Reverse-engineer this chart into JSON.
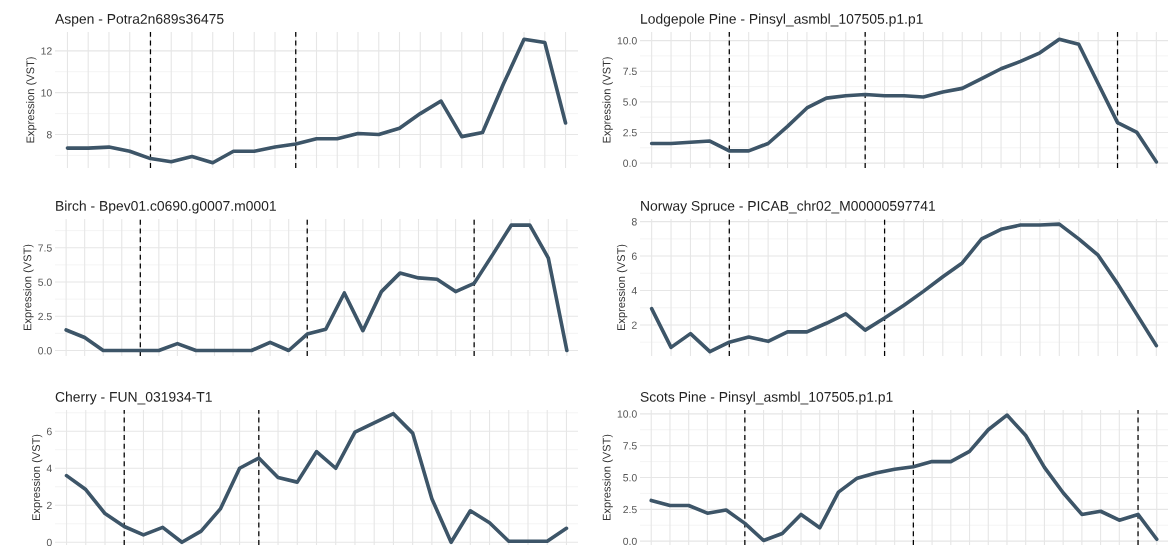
{
  "chart_data": [
    {
      "type": "line",
      "title": "Aspen - Potra2n689s36475",
      "ylabel": "Expression (VST)",
      "categories": [
        null,
        null,
        null,
        null,
        null,
        null,
        null,
        null,
        null,
        null,
        null,
        null,
        null,
        null,
        null,
        null,
        null,
        null,
        null,
        null,
        null,
        null,
        null,
        null,
        null
      ],
      "series": [
        {
          "color": "#3d5568",
          "values": [
            7.35,
            7.35,
            7.4,
            7.2,
            6.85,
            6.7,
            6.95,
            6.65,
            7.2,
            7.2,
            7.4,
            7.55,
            7.8,
            7.8,
            8.05,
            8.0,
            8.3,
            9.0,
            9.6,
            7.9,
            8.1,
            10.4,
            12.55,
            12.4,
            8.55
          ]
        }
      ],
      "ylim": [
        6.4,
        12.9
      ],
      "yticks": [
        8,
        10,
        12
      ],
      "grid": true,
      "line_style": "solid",
      "marker": "none"
    },
    {
      "type": "line",
      "title": "Lodgepole Pine - Pinsyl_asmbl_107505.p1.p1",
      "ylabel": "Expression (VST)",
      "categories": [
        null,
        null,
        null,
        null,
        null,
        null,
        null,
        null,
        null,
        null,
        null,
        null,
        null,
        null,
        null,
        null,
        null,
        null,
        null,
        null,
        null,
        null,
        null,
        null,
        null,
        null,
        null
      ],
      "series": [
        {
          "color": "#3d5568",
          "values": [
            1.6,
            1.6,
            1.7,
            1.8,
            1.0,
            1.0,
            1.6,
            3.0,
            4.5,
            5.3,
            5.5,
            5.6,
            5.5,
            5.5,
            5.4,
            5.8,
            6.1,
            6.9,
            7.7,
            8.3,
            9.0,
            10.1,
            9.7,
            6.5,
            3.3,
            2.5,
            0.1
          ]
        }
      ],
      "ylim": [
        -0.4,
        10.7
      ],
      "yticks": [
        {
          "value": 0,
          "label": "0.0"
        },
        {
          "value": 2.5,
          "label": "2.5"
        },
        {
          "value": 5,
          "label": "5.0"
        },
        {
          "value": 7.5,
          "label": "7.5"
        },
        {
          "value": 10,
          "label": "10.0"
        }
      ],
      "grid": true,
      "line_style": "solid",
      "marker": "none"
    },
    {
      "type": "line",
      "title": "Birch - Bpev01.c0690.g0007.m0001",
      "ylabel": "Expression (VST)",
      "categories": [
        null,
        null,
        null,
        null,
        null,
        null,
        null,
        null,
        null,
        null,
        null,
        null,
        null,
        null,
        null,
        null,
        null,
        null,
        null,
        null,
        null,
        null,
        null,
        null,
        null,
        null,
        null,
        null
      ],
      "series": [
        {
          "color": "#3d5568",
          "values": [
            1.5,
            0.95,
            0,
            0,
            0,
            0,
            0.5,
            0,
            0,
            0,
            0,
            0.6,
            0,
            1.2,
            1.55,
            4.2,
            1.45,
            4.3,
            5.65,
            5.3,
            5.2,
            4.3,
            4.9,
            7.0,
            9.15,
            9.15,
            6.75,
            0
          ]
        }
      ],
      "ylim": [
        -0.4,
        9.6
      ],
      "yticks": [
        {
          "value": 0,
          "label": "0.0"
        },
        {
          "value": 2.5,
          "label": "2.5"
        },
        {
          "value": 5,
          "label": "5.0"
        },
        {
          "value": 7.5,
          "label": "7.5"
        }
      ],
      "grid": true,
      "line_style": "solid",
      "marker": "none"
    },
    {
      "type": "line",
      "title": "Norway Spruce - PICAB_chr02_M00000597741",
      "ylabel": "Expression (VST)",
      "categories": [
        null,
        null,
        null,
        null,
        null,
        null,
        null,
        null,
        null,
        null,
        null,
        null,
        null,
        null,
        null,
        null,
        null,
        null,
        null,
        null,
        null,
        null,
        null,
        null,
        null,
        null,
        null
      ],
      "series": [
        {
          "color": "#3d5568",
          "values": [
            2.95,
            0.7,
            1.5,
            0.45,
            1.0,
            1.3,
            1.05,
            1.6,
            1.6,
            2.1,
            2.65,
            1.7,
            2.4,
            3.15,
            3.95,
            4.8,
            5.6,
            7.0,
            7.55,
            7.8,
            7.8,
            7.85,
            7.0,
            6.05,
            4.4,
            2.6,
            0.8
          ]
        }
      ],
      "ylim": [
        0.2,
        8.15
      ],
      "yticks": [
        2,
        4,
        6,
        8
      ],
      "grid": true,
      "line_style": "solid",
      "marker": "none"
    },
    {
      "type": "line",
      "title": "Cherry - FUN_031934-T1",
      "ylabel": "Expression (VST)",
      "categories": [
        null,
        null,
        null,
        null,
        null,
        null,
        null,
        null,
        null,
        null,
        null,
        null,
        null,
        null,
        null,
        null,
        null,
        null,
        null,
        null,
        null,
        null,
        null,
        null,
        null,
        null,
        null
      ],
      "series": [
        {
          "color": "#3d5568",
          "values": [
            3.6,
            2.85,
            1.55,
            0.85,
            0.4,
            0.8,
            0,
            0.6,
            1.8,
            4.0,
            4.55,
            3.5,
            3.25,
            4.9,
            4.0,
            5.95,
            6.45,
            6.95,
            5.9,
            2.35,
            0,
            1.7,
            1.05,
            0.05,
            0.05,
            0.05,
            0.75
          ]
        }
      ],
      "ylim": [
        -0.15,
        7.15
      ],
      "yticks": [
        0,
        2,
        4,
        6
      ],
      "grid": true,
      "line_style": "solid",
      "marker": "none"
    },
    {
      "type": "line",
      "title": "Scots Pine - Pinsyl_asmbl_107505.p1.p1",
      "ylabel": "Expression (VST)",
      "categories": [
        null,
        null,
        null,
        null,
        null,
        null,
        null,
        null,
        null,
        null,
        null,
        null,
        null,
        null,
        null,
        null,
        null,
        null,
        null,
        null,
        null,
        null,
        null,
        null,
        null,
        null,
        null,
        null
      ],
      "series": [
        {
          "color": "#3d5568",
          "values": [
            3.2,
            2.8,
            2.8,
            2.2,
            2.45,
            1.4,
            0.05,
            0.6,
            2.1,
            1.05,
            3.85,
            4.95,
            5.35,
            5.65,
            5.85,
            6.25,
            6.25,
            7.05,
            8.75,
            9.9,
            8.3,
            5.8,
            3.8,
            2.1,
            2.35,
            1.65,
            2.1,
            0.15
          ]
        }
      ],
      "ylim": [
        -0.3,
        10.3
      ],
      "yticks": [
        {
          "value": 0,
          "label": "0.0"
        },
        {
          "value": 2.5,
          "label": "2.5"
        },
        {
          "value": 5,
          "label": "5.0"
        },
        {
          "value": 7.5,
          "label": "7.5"
        },
        {
          "value": 10,
          "label": "10.0"
        }
      ],
      "grid": true,
      "line_style": "solid",
      "marker": "none"
    }
  ]
}
